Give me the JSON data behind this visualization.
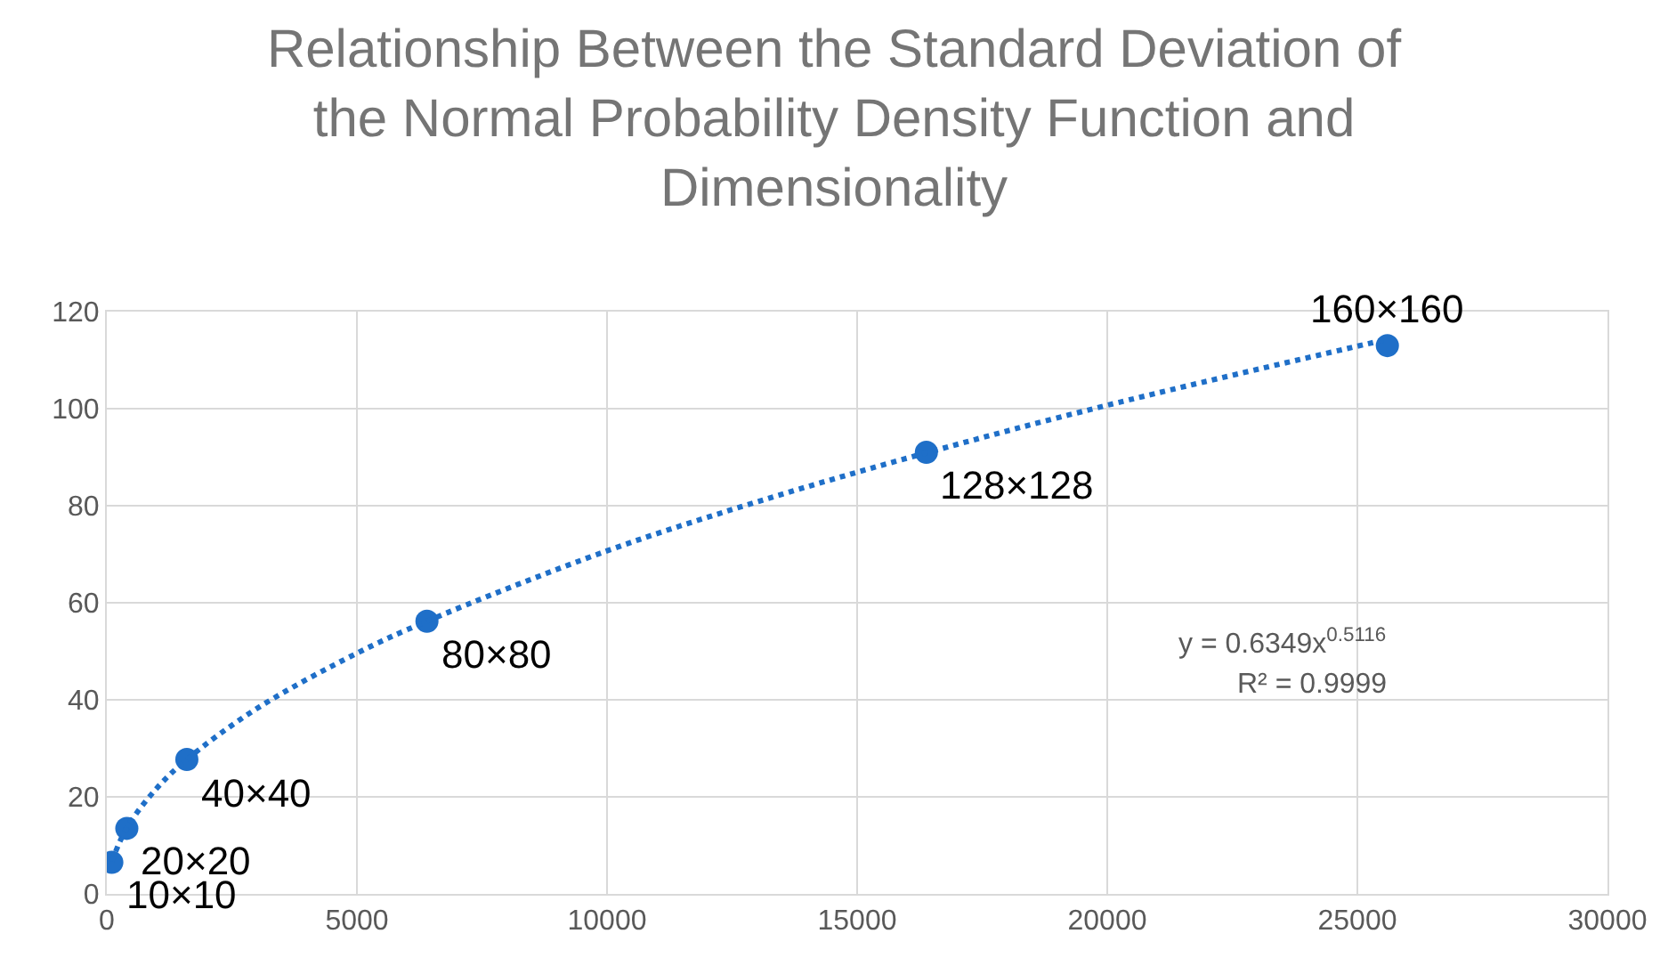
{
  "chart_data": {
    "type": "scatter",
    "title": "Relationship Between the Standard Deviation of the Normal Probability Density Function and Dimensionality",
    "x": [
      100,
      400,
      1600,
      6400,
      16384,
      25600
    ],
    "series": [
      {
        "color": "#1f6fc8",
        "values": [
          6.5,
          13.5,
          27.7,
          56.2,
          91,
          113
        ],
        "marker": "circle"
      },
      {
        "type": "line",
        "color": "#1f6fc8",
        "line_style": "dotted",
        "marker": "none",
        "x": [
          100,
          400,
          1000,
          1600,
          3000,
          5000,
          6400,
          10000,
          13000,
          16384,
          20000,
          25600
        ],
        "values": [
          6.7,
          13.6,
          21.8,
          27.7,
          38.2,
          49.6,
          56.2,
          70.7,
          80.8,
          90.9,
          100.7,
          114.3
        ]
      }
    ],
    "annotations": [
      {
        "text": "10×10",
        "x": 100,
        "y": 6.5
      },
      {
        "text": "20×20",
        "x": 400,
        "y": 13.5
      },
      {
        "text": "40×40",
        "x": 1600,
        "y": 27.7
      },
      {
        "text": "80×80",
        "x": 6400,
        "y": 56.2
      },
      {
        "text": "128×128",
        "x": 16384,
        "y": 91
      },
      {
        "text": "160×160",
        "x": 25600,
        "y": 113
      },
      "y = 0.6349x$^{0.5116}$",
      "R² = 0.9999"
    ],
    "xlim": [
      0,
      30000
    ],
    "xticks": [
      0,
      5000,
      10000,
      15000,
      20000,
      25000,
      30000
    ],
    "ylim": [
      0,
      120
    ],
    "yticks": [
      0,
      20,
      40,
      60,
      80,
      100,
      120
    ],
    "grid": true,
    "legend": false
  }
}
